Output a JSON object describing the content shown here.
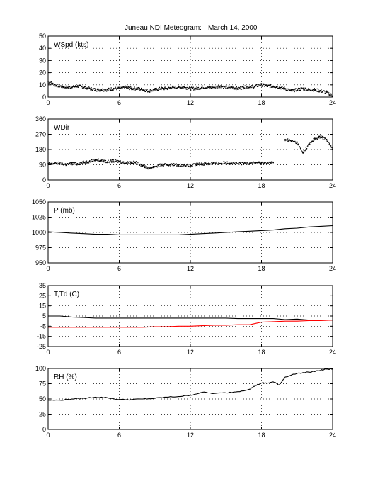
{
  "figure": {
    "title": "Juneau NDI Meteogram:",
    "date": "March 14, 2000"
  },
  "chart_data": [
    {
      "type": "scatter",
      "label": "WSpd (kts)",
      "xlim": [
        0,
        24
      ],
      "xticks": [
        "0",
        "6",
        "12",
        "18",
        "24"
      ],
      "ylim": [
        0,
        50
      ],
      "yticks": [
        "0",
        "10",
        "20",
        "30",
        "40",
        "50"
      ],
      "grid": true,
      "series": [
        {
          "color": "#000000",
          "x": [
            0,
            0.5,
            1,
            1.5,
            2,
            2.5,
            3,
            3.5,
            4,
            4.5,
            5,
            5.5,
            6,
            6.5,
            7,
            7.5,
            8,
            8.5,
            9,
            9.5,
            10,
            10.5,
            11,
            11.5,
            12,
            12.5,
            13,
            13.5,
            14,
            14.5,
            15,
            15.5,
            16,
            16.5,
            17,
            17.5,
            18,
            18.5,
            19,
            19.5,
            20,
            20.5,
            21,
            21.5,
            22,
            22.5,
            23,
            23.5,
            24
          ],
          "y": [
            13,
            10,
            9,
            8,
            8,
            9,
            8,
            7,
            6,
            6,
            6,
            7,
            7,
            8,
            7,
            7,
            6,
            5,
            6,
            7,
            7,
            8,
            8,
            8,
            7,
            7,
            8,
            8,
            8,
            9,
            8,
            8,
            7,
            8,
            8,
            9,
            10,
            9,
            9,
            8,
            7,
            5,
            6,
            7,
            6,
            6,
            5,
            4,
            1
          ]
        }
      ]
    },
    {
      "type": "scatter",
      "label": "WDir",
      "xlim": [
        0,
        24
      ],
      "xticks": [
        "0",
        "6",
        "12",
        "18",
        "24"
      ],
      "ylim": [
        0,
        360
      ],
      "yticks": [
        "0",
        "90",
        "180",
        "270",
        "360"
      ],
      "grid": true,
      "series": [
        {
          "color": "#000000",
          "x": [
            0,
            0.5,
            1,
            1.5,
            2,
            2.5,
            3,
            3.5,
            4,
            4.5,
            5,
            5.5,
            6,
            6.5,
            7,
            7.5,
            8,
            8.5,
            9,
            9.5,
            10,
            10.5,
            11,
            11.5,
            12,
            12.5,
            13,
            13.5,
            14,
            14.5,
            15,
            15.5,
            16,
            16.5,
            17,
            17.5,
            18,
            18.5,
            19,
            19.5,
            20,
            20.5,
            21,
            21.5,
            22,
            22.5,
            23,
            23.5,
            24
          ],
          "y": [
            95,
            98,
            100,
            92,
            97,
            95,
            105,
            110,
            120,
            115,
            108,
            112,
            110,
            100,
            105,
            102,
            85,
            70,
            80,
            88,
            90,
            92,
            87,
            88,
            85,
            92,
            95,
            97,
            100,
            98,
            102,
            100,
            95,
            98,
            100,
            102,
            100,
            103,
            102,
            null,
            240,
            230,
            220,
            160,
            210,
            245,
            255,
            240,
            180
          ]
        }
      ]
    },
    {
      "type": "line",
      "label": "P (mb)",
      "xlim": [
        0,
        24
      ],
      "xticks": [
        "0",
        "6",
        "12",
        "18",
        "24"
      ],
      "ylim": [
        950,
        1050
      ],
      "yticks": [
        "950",
        "975",
        "1000",
        "1025",
        "1050"
      ],
      "grid": true,
      "series": [
        {
          "color": "#000000",
          "x": [
            0,
            1,
            2,
            3,
            4,
            5,
            6,
            7,
            8,
            9,
            10,
            11,
            12,
            13,
            14,
            15,
            16,
            17,
            18,
            19,
            20,
            21,
            22,
            23,
            24
          ],
          "y": [
            1001,
            1000,
            999,
            998,
            997,
            997,
            996,
            996,
            996,
            996,
            996,
            996,
            997,
            998,
            999,
            1000,
            1001,
            1002,
            1003,
            1004,
            1006,
            1007,
            1009,
            1010,
            1011
          ]
        }
      ]
    },
    {
      "type": "line",
      "label": "T,Td (C)",
      "xlim": [
        0,
        24
      ],
      "xticks": [
        "0",
        "6",
        "12",
        "18",
        "24"
      ],
      "ylim": [
        -25,
        35
      ],
      "yticks": [
        "-25",
        "-15",
        "-5",
        "5",
        "15",
        "25",
        "35"
      ],
      "grid": true,
      "series": [
        {
          "color": "#000000",
          "x": [
            0,
            1,
            2,
            3,
            4,
            5,
            6,
            7,
            8,
            9,
            10,
            11,
            12,
            13,
            14,
            15,
            16,
            17,
            18,
            19,
            20,
            21,
            22,
            23,
            24
          ],
          "y": [
            5,
            5,
            4,
            3.5,
            3,
            3,
            3,
            3,
            3,
            3,
            3,
            3,
            3,
            3,
            3,
            3,
            2.5,
            2.5,
            2.5,
            2.5,
            1.5,
            2,
            1,
            1,
            1
          ]
        },
        {
          "color": "#ff0000",
          "x": [
            0,
            1,
            2,
            3,
            4,
            5,
            6,
            7,
            8,
            9,
            10,
            11,
            12,
            13,
            14,
            15,
            16,
            17,
            18,
            19,
            20,
            21,
            22,
            23,
            24
          ],
          "y": [
            -6,
            -6,
            -6,
            -6,
            -6,
            -6,
            -6,
            -6,
            -6,
            -5.5,
            -5.5,
            -5,
            -5,
            -4.5,
            -4,
            -4,
            -3.5,
            -3.5,
            -1,
            -0.5,
            0,
            0,
            0.5,
            0.5,
            1
          ]
        }
      ]
    },
    {
      "type": "line",
      "label": "RH (%)",
      "xlim": [
        0,
        24
      ],
      "xticks": [
        "0",
        "6",
        "12",
        "18",
        "24"
      ],
      "ylim": [
        0,
        100
      ],
      "yticks": [
        "0",
        "25",
        "50",
        "75",
        "100"
      ],
      "grid": true,
      "series": [
        {
          "color": "#000000",
          "x": [
            0,
            1,
            2,
            3,
            4,
            5,
            6,
            7,
            8,
            9,
            10,
            11,
            12,
            13,
            14,
            15,
            16,
            17,
            17.5,
            18,
            18.5,
            19,
            19.5,
            20,
            21,
            22,
            23,
            23.5,
            24
          ],
          "y": [
            48,
            48,
            50,
            51,
            53,
            52,
            49,
            49,
            50,
            51,
            53,
            54,
            56,
            61,
            59,
            60,
            62,
            66,
            72,
            76,
            76,
            78,
            73,
            86,
            92,
            94,
            97,
            99,
            99
          ]
        }
      ]
    }
  ]
}
